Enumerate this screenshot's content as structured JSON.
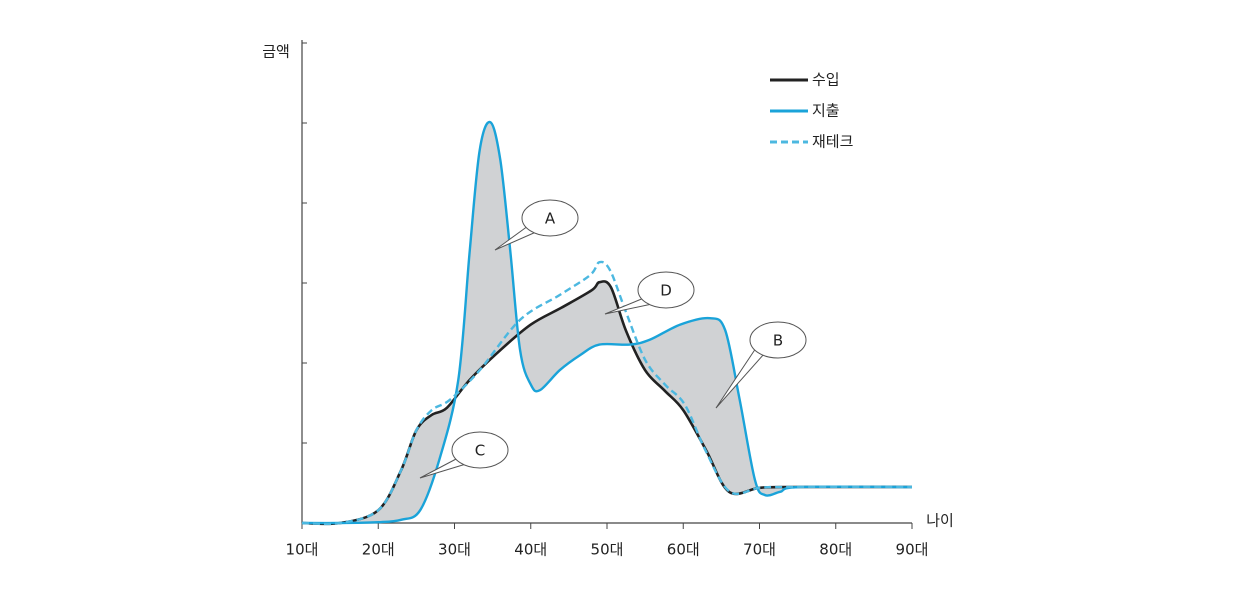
{
  "chart_data": {
    "type": "line",
    "x_label": "나이",
    "y_label": "금액",
    "xlim": [
      10,
      90
    ],
    "xticks": [
      {
        "value": 10,
        "label": "10대"
      },
      {
        "value": 20,
        "label": "20대"
      },
      {
        "value": 30,
        "label": "30대"
      },
      {
        "value": 40,
        "label": "40대"
      },
      {
        "value": 50,
        "label": "50대"
      },
      {
        "value": 60,
        "label": "60대"
      },
      {
        "value": 70,
        "label": "70대"
      },
      {
        "value": 80,
        "label": "80대"
      },
      {
        "value": 90,
        "label": "90대"
      }
    ],
    "ylim": [
      0,
      6
    ],
    "yticks": [
      1,
      2,
      3,
      4,
      5,
      6
    ],
    "fill_between": "#d0d2d4",
    "series": [
      {
        "name": "수입",
        "color": "#222222",
        "dash": false,
        "x": [
          10,
          15,
          20,
          23,
          25,
          27,
          29,
          32,
          36,
          40,
          44,
          48,
          49,
          50.5,
          52.5,
          55,
          57.5,
          60,
          63,
          66,
          70,
          74,
          90
        ],
        "values": [
          0,
          0,
          0.16,
          0.66,
          1.16,
          1.35,
          1.44,
          1.79,
          2.16,
          2.48,
          2.69,
          2.91,
          3.01,
          2.95,
          2.4,
          1.91,
          1.66,
          1.41,
          0.91,
          0.39,
          0.44,
          0.45,
          0.45
        ]
      },
      {
        "name": "지출",
        "color": "#1aa3d9",
        "dash": false,
        "x": [
          10,
          15,
          20,
          23,
          25.5,
          28,
          30.5,
          32,
          33.3,
          34.7,
          36,
          37.3,
          38.6,
          40,
          41.2,
          43.8,
          46.5,
          49,
          53,
          55.6,
          59.6,
          63.5,
          65.5,
          67.4,
          69.4,
          70.7,
          72.7,
          75.3,
          90
        ],
        "values": [
          0,
          0,
          0.01,
          0.04,
          0.16,
          0.79,
          1.79,
          3.41,
          4.66,
          5.01,
          4.54,
          3.41,
          2.16,
          1.73,
          1.66,
          1.91,
          2.1,
          2.23,
          2.23,
          2.29,
          2.48,
          2.56,
          2.41,
          1.54,
          0.54,
          0.35,
          0.39,
          0.45,
          0.45
        ]
      },
      {
        "name": "재테크",
        "color": "#4cb8e0",
        "dash": true,
        "x": [
          10,
          15,
          20,
          23,
          25,
          27,
          29.4,
          33.3,
          38.6,
          43.8,
          47.8,
          49,
          50.4,
          52.4,
          55,
          57.6,
          60.2,
          62.9,
          66.1,
          70,
          74,
          90
        ],
        "values": [
          0,
          0,
          0.16,
          0.66,
          1.16,
          1.41,
          1.54,
          1.91,
          2.54,
          2.85,
          3.1,
          3.26,
          3.16,
          2.66,
          2.04,
          1.73,
          1.48,
          0.91,
          0.39,
          0.44,
          0.45,
          0.45
        ]
      }
    ],
    "annotations": [
      {
        "text": "A"
      },
      {
        "text": "D"
      },
      {
        "text": "B"
      },
      {
        "text": "C"
      }
    ]
  }
}
